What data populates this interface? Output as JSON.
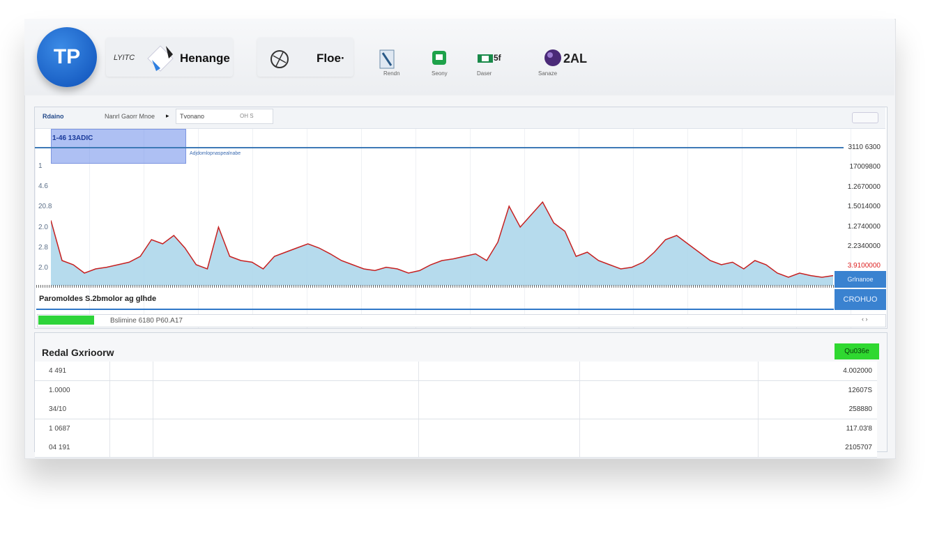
{
  "header": {
    "logo": "TP",
    "tabs": [
      {
        "prefix": "LYITC",
        "label": "Henange"
      },
      {
        "label": "Floe·"
      }
    ],
    "tools": [
      {
        "label": "Rendn"
      },
      {
        "label": "Seony"
      },
      {
        "label": "Daser",
        "badge": "5f"
      },
      {
        "label": "Sanaze",
        "badge": "2AL"
      }
    ]
  },
  "chart_panel": {
    "toolbar": {
      "name": "Rdaino",
      "menu": "Nanrl Gaorr Mnoe",
      "field": "Tvonano",
      "field_hint": "OH S"
    },
    "selection_label": "1-46 13ADIC",
    "link": "Adjdomlopnaspealnabe",
    "left_labels": [
      "1",
      "4.6",
      "20.8",
      "2.0",
      "2.8",
      "2.0"
    ],
    "right_labels": [
      "3110 6300",
      "17009800",
      "1.2670000",
      "1.5014000",
      "1.2740000",
      "2.2340000",
      "3.9100000"
    ],
    "values": [
      78,
      30,
      25,
      15,
      20,
      22,
      25,
      28,
      35,
      55,
      50,
      60,
      45,
      25,
      20,
      70,
      35,
      30,
      28,
      20,
      35,
      40,
      45,
      50,
      45,
      38,
      30,
      25,
      20,
      18,
      22,
      20,
      15,
      18,
      25,
      30,
      32,
      35,
      38,
      30,
      52,
      95,
      70,
      85,
      100,
      75,
      65,
      35,
      40,
      30,
      25,
      20,
      22,
      28,
      40,
      55,
      60,
      50,
      40,
      30,
      25,
      28,
      20,
      30,
      25,
      15,
      10,
      15,
      12,
      10,
      12
    ],
    "buttons": [
      "Grlnanoe",
      "CROHUO"
    ],
    "caption": "Paromoldes S.2bmolor ag glhde",
    "status": "Bslimine 6180 P60.A17"
  },
  "table_panel": {
    "title": "Redal Gxrioorw",
    "button": "Qu036e",
    "rows": [
      [
        "4 491",
        "4.002000"
      ],
      [
        "1.0000",
        "12607S"
      ],
      [
        "34/10",
        "258880"
      ],
      [
        "1 0687",
        "117.03'8"
      ],
      [
        "04 191",
        "2105707"
      ]
    ]
  }
}
